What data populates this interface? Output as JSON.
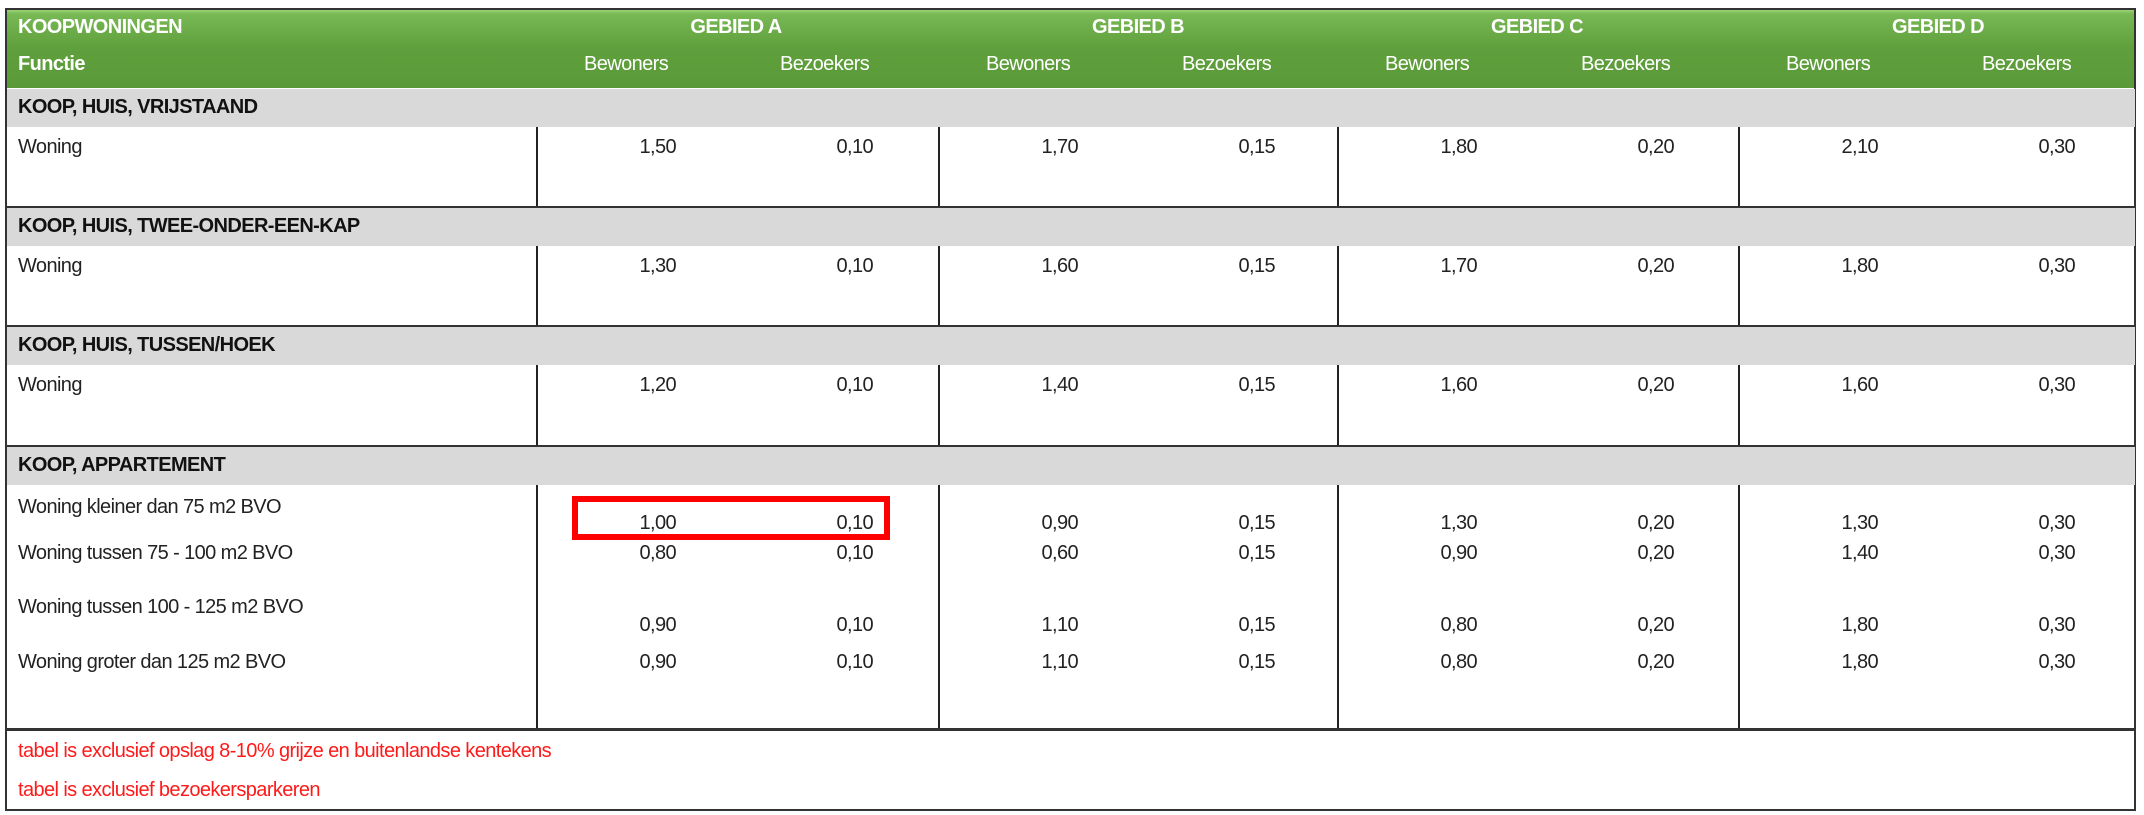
{
  "header": {
    "title": "KOOPWONINGEN",
    "functie_label": "Functie",
    "areas": [
      "GEBIED A",
      "GEBIED B",
      "GEBIED C",
      "GEBIED D"
    ],
    "sub_columns": [
      "Bewoners",
      "Bezoekers"
    ]
  },
  "sections": [
    {
      "title": "KOOP, HUIS, VRIJSTAAND",
      "rows": [
        {
          "label": "Woning",
          "values": [
            [
              "1,50",
              "0,10"
            ],
            [
              "1,70",
              "0,15"
            ],
            [
              "1,80",
              "0,20"
            ],
            [
              "2,10",
              "0,30"
            ]
          ]
        }
      ]
    },
    {
      "title": "KOOP, HUIS, TWEE-ONDER-EEN-KAP",
      "rows": [
        {
          "label": "Woning",
          "values": [
            [
              "1,30",
              "0,10"
            ],
            [
              "1,60",
              "0,15"
            ],
            [
              "1,70",
              "0,20"
            ],
            [
              "1,80",
              "0,30"
            ]
          ]
        }
      ]
    },
    {
      "title": "KOOP, HUIS, TUSSEN/HOEK",
      "rows": [
        {
          "label": "Woning",
          "values": [
            [
              "1,20",
              "0,10"
            ],
            [
              "1,40",
              "0,15"
            ],
            [
              "1,60",
              "0,20"
            ],
            [
              "1,60",
              "0,30"
            ]
          ]
        }
      ]
    },
    {
      "title": "KOOP, APPARTEMENT",
      "rows": [
        {
          "label": "Woning kleiner dan 75 m2 BVO",
          "values": [
            [
              "1,00",
              "0,10"
            ],
            [
              "0,90",
              "0,15"
            ],
            [
              "1,30",
              "0,20"
            ],
            [
              "1,30",
              "0,30"
            ]
          ]
        },
        {
          "label": "Woning tussen 75 - 100 m2 BVO",
          "values": [
            [
              "0,80",
              "0,10"
            ],
            [
              "0,60",
              "0,15"
            ],
            [
              "0,90",
              "0,20"
            ],
            [
              "1,40",
              "0,30"
            ]
          ]
        },
        {
          "label": "Woning tussen 100 - 125 m2 BVO",
          "values": [
            [
              "0,90",
              "0,10"
            ],
            [
              "1,10",
              "0,15"
            ],
            [
              "0,80",
              "0,20"
            ],
            [
              "1,80",
              "0,30"
            ]
          ]
        },
        {
          "label": "Woning groter dan 125 m2 BVO",
          "values": [
            [
              "0,90",
              "0,10"
            ],
            [
              "1,10",
              "0,15"
            ],
            [
              "0,80",
              "0,20"
            ],
            [
              "1,80",
              "0,30"
            ]
          ]
        }
      ]
    }
  ],
  "notes": [
    "tabel is exclusief opslag 8-10% grijze en buitenlandse kentekens",
    "tabel is exclusief bezoekersparkeren"
  ],
  "highlight": {
    "section": 3,
    "row": 0,
    "area": "GEBIED A",
    "color": "#ff0000"
  },
  "colors": {
    "header_green": "#5f9f3c",
    "section_gray": "#d9d9d9",
    "note_red": "#ff1a1a"
  }
}
